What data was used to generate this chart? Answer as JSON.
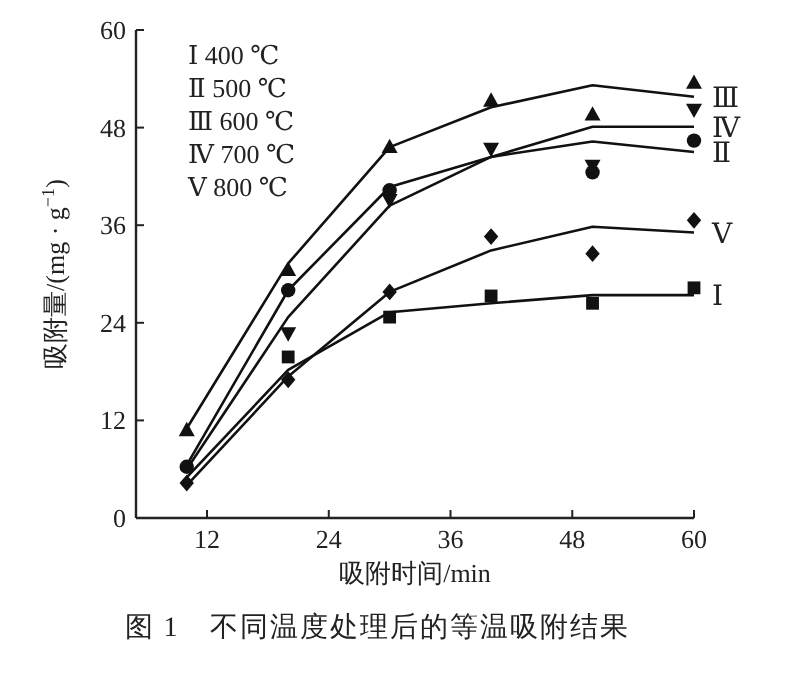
{
  "chart_data": {
    "type": "scatter",
    "title": "图 1　不同温度处理后的等温吸附结果",
    "xlabel": "吸附时间/min",
    "ylabel": "吸附量/(mg · g$^{−1}$)",
    "annotations": [
      "Ⅰ 400 ℃",
      "Ⅱ 500 ℃",
      "Ⅲ 600 ℃",
      "Ⅳ 700 ℃",
      "Ⅴ 800 ℃"
    ],
    "x": [
      10,
      20,
      30,
      40,
      50,
      60
    ],
    "xlim": [
      5,
      60
    ],
    "xticks": [
      12,
      24,
      36,
      48,
      60
    ],
    "ylim": [
      0,
      60
    ],
    "yticks": [
      0,
      12,
      24,
      36,
      48,
      60
    ],
    "grid": false,
    "series": [
      {
        "type": "scatter",
        "marker": "square",
        "color": "#111111",
        "values": [
          null,
          19.8,
          24.7,
          27.3,
          26.4,
          28.3
        ]
      },
      {
        "type": "scatter",
        "marker": "circle",
        "color": "#111111",
        "values": [
          6.3,
          28.0,
          40.3,
          null,
          42.5,
          46.4
        ]
      },
      {
        "type": "scatter",
        "marker": "triangle",
        "color": "#111111",
        "values": [
          10.8,
          30.5,
          45.6,
          51.3,
          49.6,
          53.5
        ]
      },
      {
        "type": "scatter",
        "marker": "triangle_down",
        "color": "#111111",
        "values": [
          null,
          22.7,
          39.1,
          45.4,
          43.3,
          50.2
        ]
      },
      {
        "type": "scatter",
        "marker": "diamond",
        "color": "#111111",
        "values": [
          4.3,
          17.0,
          27.8,
          34.6,
          32.5,
          36.6
        ]
      },
      {
        "type": "line",
        "name": "Ⅰ",
        "marker": "none",
        "color": "#111111",
        "values": [
          5.0,
          18.2,
          25.3,
          26.4,
          27.4,
          27.4
        ]
      },
      {
        "type": "line",
        "name": "Ⅱ",
        "marker": "none",
        "color": "#111111",
        "values": [
          6.5,
          28.0,
          40.7,
          44.4,
          46.3,
          45.0
        ]
      },
      {
        "type": "line",
        "name": "Ⅲ",
        "marker": "none",
        "color": "#111111",
        "values": [
          11.0,
          31.3,
          45.6,
          50.5,
          53.2,
          51.8
        ]
      },
      {
        "type": "line",
        "name": "Ⅳ",
        "marker": "none",
        "color": "#111111",
        "values": [
          6.0,
          24.7,
          38.4,
          44.4,
          48.1,
          48.1
        ]
      },
      {
        "type": "line",
        "name": "Ⅴ",
        "marker": "none",
        "color": "#111111",
        "values": [
          4.0,
          17.4,
          27.8,
          32.9,
          35.8,
          35.1
        ]
      }
    ]
  }
}
